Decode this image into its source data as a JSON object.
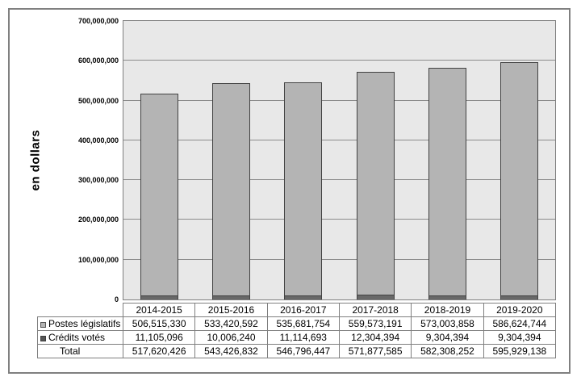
{
  "chart_data": {
    "type": "bar",
    "stacked": true,
    "title": "",
    "xlabel": "",
    "ylabel": "en dollars",
    "categories": [
      "2014-2015",
      "2015-2016",
      "2016-2017",
      "2017-2018",
      "2018-2019",
      "2019-2020"
    ],
    "series": [
      {
        "name": "Postes législatifs",
        "values": [
          506515330,
          533420592,
          535681754,
          559573191,
          573003858,
          586624744
        ],
        "color": "#b4b4b4"
      },
      {
        "name": "Crédits votés",
        "values": [
          11105096,
          10006240,
          11114693,
          12304394,
          9304394,
          9304394
        ],
        "color": "#686868"
      }
    ],
    "total_row": {
      "name": "Total",
      "values": [
        517620426,
        543426832,
        546796447,
        571877585,
        582308252,
        595929138
      ]
    },
    "ylim": [
      0,
      700000000
    ],
    "ytick_step": 100000000,
    "ytick_labels": [
      "0",
      "100,000,000",
      "200,000,000",
      "300,000,000",
      "400,000,000",
      "500,000,000",
      "600,000,000",
      "700,000,000"
    ],
    "grid": true,
    "legend_position": "table-left",
    "stack_order_bottom_to_top": [
      "Crédits votés",
      "Postes législatifs"
    ]
  },
  "colors": {
    "plot_background": "#e8e8e8",
    "grid_line": "#8c8c8c",
    "bar_fill": "#b4b4b4",
    "bar_border": "#424242",
    "credits_fill": "#686868",
    "frame_border": "#808080",
    "table_border": "#7f7f7f"
  }
}
